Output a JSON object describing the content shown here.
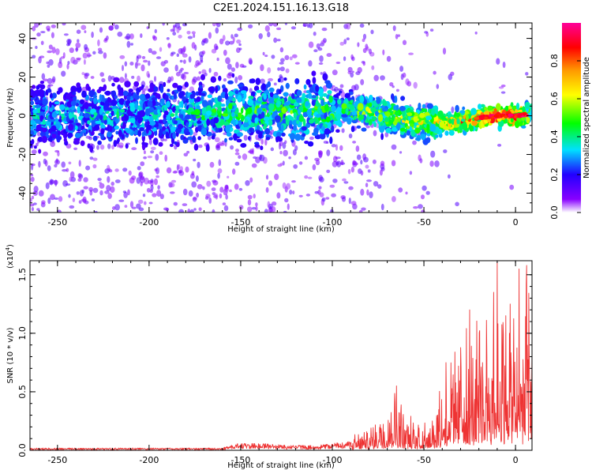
{
  "title": "C2E1.2024.151.16.13.G18",
  "chart_data": [
    {
      "type": "heatmap",
      "xlabel": "Height of straight line (km)",
      "ylabel": "Frequency (Hz)",
      "xlim": [
        -265,
        9
      ],
      "ylim": [
        -50,
        48
      ],
      "xticks": [
        -250,
        -200,
        -150,
        -100,
        -50,
        0
      ],
      "yticks": [
        -40,
        -20,
        0,
        20,
        40
      ],
      "colorbar": {
        "label": "Normalized spectral amplitude",
        "range": [
          0,
          1
        ],
        "ticks": [
          "0.0",
          "0.2",
          "0.4",
          "0.6",
          "0.8"
        ],
        "tick_values": [
          0,
          0.2,
          0.4,
          0.6,
          0.8
        ],
        "colormap": "rainbow (white-violet-purple-blue-cyan-green-yellow-orange-red-magenta)"
      },
      "ridge": {
        "description": "frequency centre of the strong-amplitude band",
        "x": [
          -265,
          -200,
          -150,
          -110,
          -90,
          -80,
          -70,
          -60,
          -50,
          -40,
          -30,
          -20,
          -10,
          0,
          9
        ],
        "y": [
          0,
          0,
          2,
          2,
          3,
          2,
          0,
          -2,
          -3,
          -4,
          -3,
          -1,
          0,
          0,
          1
        ],
        "amplitude": [
          0.35,
          0.35,
          0.45,
          0.45,
          0.5,
          0.55,
          0.55,
          0.6,
          0.6,
          0.65,
          0.75,
          0.85,
          0.95,
          0.95,
          0.6
        ]
      }
    },
    {
      "type": "line",
      "xlabel": "Height of straight line (km)",
      "ylabel": "SNR (10 * v/v)",
      "yscale_note": "(x10",
      "yscale_exp": "4",
      "yscale_close": ")",
      "xlim": [
        -265,
        9
      ],
      "ylim": [
        0,
        1.62
      ],
      "xticks": [
        -250,
        -200,
        -150,
        -100,
        -50,
        0
      ],
      "yticks": [
        "0.0",
        "0.5",
        "1.0",
        "1.5"
      ],
      "ytick_values": [
        0,
        0.5,
        1.0,
        1.5
      ],
      "color": "#ee3333",
      "envelope": {
        "x": [
          -265,
          -160,
          -155,
          -150,
          -140,
          -130,
          -110,
          -90,
          -80,
          -75,
          -70,
          -65,
          -60,
          -58,
          -50,
          -45,
          -40,
          -35,
          -30,
          -25,
          -20,
          -15,
          -10,
          -8,
          -5,
          -2,
          0,
          3,
          5,
          7,
          9
        ],
        "y": [
          0.02,
          0.02,
          0.05,
          0.06,
          0.06,
          0.05,
          0.04,
          0.08,
          0.15,
          0.25,
          0.35,
          0.4,
          0.3,
          0.2,
          0.2,
          0.3,
          0.45,
          0.6,
          0.8,
          0.7,
          0.9,
          1.0,
          0.9,
          1.1,
          0.95,
          1.0,
          0.9,
          0.8,
          1.0,
          1.4,
          0.9
        ]
      },
      "spikes": [
        {
          "x": -65,
          "y": 0.55
        },
        {
          "x": -38,
          "y": 0.75
        },
        {
          "x": -25,
          "y": 1.2
        },
        {
          "x": -12,
          "y": 1.35
        },
        {
          "x": -10,
          "y": 1.62
        },
        {
          "x": -3,
          "y": 1.25
        },
        {
          "x": 2,
          "y": 1.55
        },
        {
          "x": 6,
          "y": 1.58
        }
      ]
    }
  ]
}
